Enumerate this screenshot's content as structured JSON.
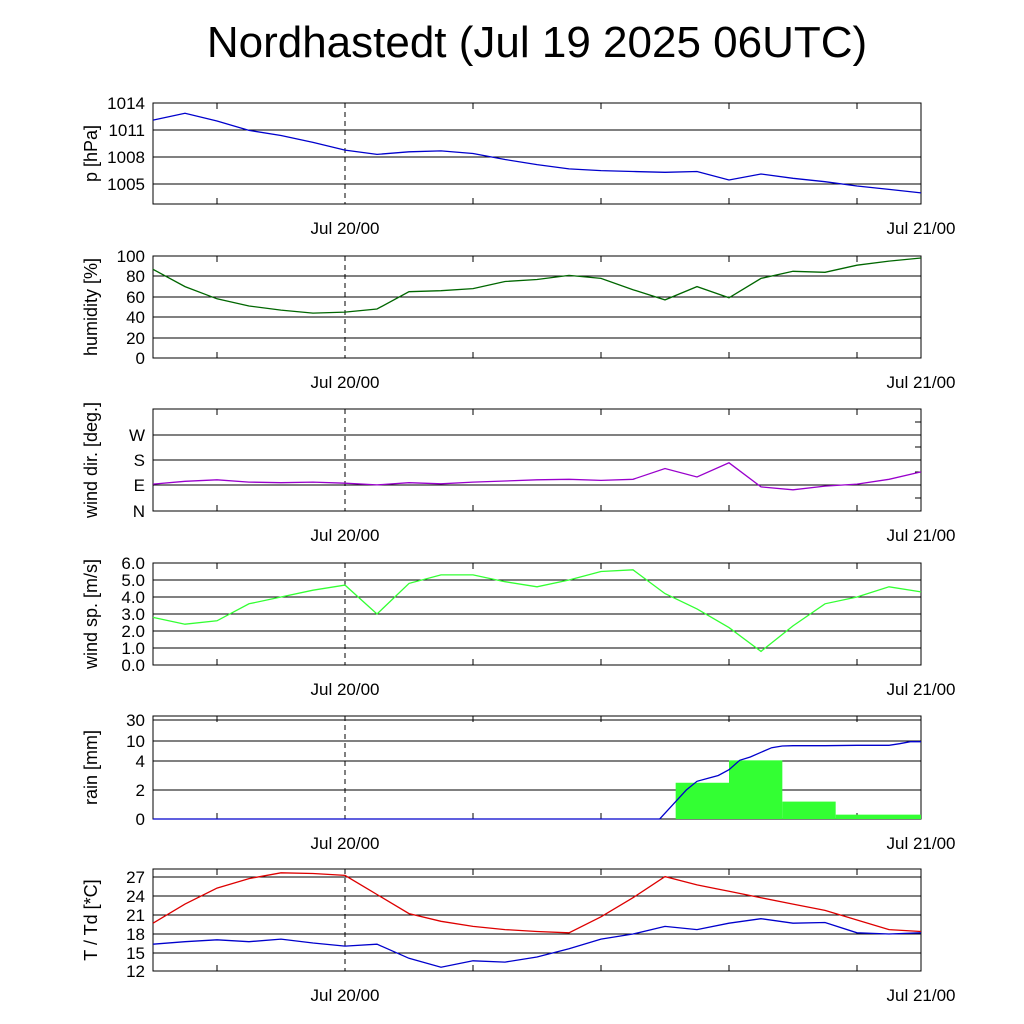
{
  "page": {
    "title": "Nordhastedt (Jul 19 2025 06UTC)"
  },
  "chart_data": [
    {
      "type": "line",
      "ylabel": "p [hPa]",
      "yticks": [
        "1014",
        "1011",
        "1008",
        "1005"
      ],
      "ytick_values": [
        1014,
        1011,
        1008,
        1005
      ],
      "ylim": [
        1002.2,
        1014
      ],
      "xticks": [
        "Jul 20/00",
        "Jul 21/00"
      ],
      "x_hours_since_start": [
        0,
        3,
        6,
        9,
        12,
        15,
        18,
        21,
        24,
        27,
        30,
        33,
        36,
        39,
        42,
        45,
        48,
        51,
        54,
        57,
        60,
        63,
        66,
        69,
        72
      ],
      "series": [
        {
          "values": [
            1012.0,
            1012.8,
            1011.9,
            1010.8,
            1010.2,
            1009.4,
            1008.5,
            1008.0,
            1008.3,
            1008.4,
            1008.1,
            1007.4,
            1006.8,
            1006.3,
            1006.1,
            1006.0,
            1005.9,
            1006.0,
            1005.0,
            1005.7,
            1005.2,
            1004.8,
            1004.3,
            1003.9,
            1003.5
          ],
          "color": "#0000cc"
        }
      ]
    },
    {
      "type": "line",
      "ylabel": "humidity [%]",
      "yticks": [
        "100",
        "80",
        "60",
        "40",
        "20",
        "0"
      ],
      "ytick_values": [
        100,
        80,
        60,
        40,
        20,
        0
      ],
      "ylim": [
        0,
        100
      ],
      "xticks": [
        "Jul 20/00",
        "Jul 21/00"
      ],
      "x_hours_since_start": [
        0,
        3,
        6,
        9,
        12,
        15,
        18,
        21,
        24,
        27,
        30,
        33,
        36,
        39,
        42,
        45,
        48,
        51,
        54,
        57,
        60,
        63,
        66,
        69,
        72
      ],
      "series": [
        {
          "values": [
            87,
            70,
            58,
            51,
            47,
            44,
            45,
            48,
            65,
            66,
            68,
            75,
            77,
            81,
            78,
            67,
            57,
            70,
            59,
            78,
            85,
            84,
            91,
            95,
            98
          ],
          "color": "#006600"
        }
      ]
    },
    {
      "type": "line",
      "ylabel": "wind dir. [deg.]",
      "yticks": [
        "W",
        "S",
        "E",
        "N"
      ],
      "ytick_values": [
        270,
        180,
        90,
        0
      ],
      "ylim": [
        0,
        360
      ],
      "xticks": [
        "Jul 20/00",
        "Jul 21/00"
      ],
      "x_hours_since_start": [
        0,
        3,
        6,
        9,
        12,
        15,
        18,
        21,
        24,
        27,
        30,
        33,
        36,
        39,
        42,
        45,
        48,
        51,
        54,
        57,
        60,
        63,
        66,
        69,
        72
      ],
      "series": [
        {
          "values": [
            95,
            105,
            110,
            102,
            100,
            102,
            98,
            92,
            100,
            96,
            102,
            106,
            110,
            112,
            108,
            112,
            150,
            120,
            170,
            85,
            75,
            88,
            95,
            112,
            138
          ],
          "color": "#9900cc"
        }
      ]
    },
    {
      "type": "line",
      "ylabel": "wind sp. [m/s]",
      "yticks": [
        "6.0",
        "5.0",
        "4.0",
        "3.0",
        "2.0",
        "1.0",
        "0.0"
      ],
      "ytick_values": [
        6,
        5,
        4,
        3,
        2,
        1,
        0
      ],
      "ylim": [
        0,
        6
      ],
      "xticks": [
        "Jul 20/00",
        "Jul 21/00"
      ],
      "x_hours_since_start": [
        0,
        3,
        6,
        9,
        12,
        15,
        18,
        21,
        24,
        27,
        30,
        33,
        36,
        39,
        42,
        45,
        48,
        51,
        54,
        57,
        60,
        63,
        66,
        69,
        72
      ],
      "series": [
        {
          "values": [
            2.8,
            2.4,
            2.6,
            3.6,
            4.0,
            4.4,
            4.7,
            3.0,
            4.8,
            5.3,
            5.3,
            4.9,
            4.6,
            5.0,
            5.5,
            5.6,
            4.2,
            3.3,
            2.2,
            0.8,
            2.3,
            3.6,
            4.0,
            4.6,
            4.3
          ],
          "color": "#33ff33"
        }
      ]
    },
    {
      "type": "bar",
      "ylabel": "rain [mm]",
      "yticks": [
        "30",
        "10",
        "4",
        "2",
        "0"
      ],
      "ytick_values": [
        30,
        10,
        4,
        2,
        0
      ],
      "ylim": [
        0,
        30
      ],
      "xticks": [
        "Jul 20/00",
        "Jul 21/00"
      ],
      "bars": [
        {
          "x_start_hour": 49,
          "x_end_hour": 54,
          "value": 2.5
        },
        {
          "x_start_hour": 54,
          "x_end_hour": 59,
          "value": 4.2
        },
        {
          "x_start_hour": 59,
          "x_end_hour": 64,
          "value": 1.2
        },
        {
          "x_start_hour": 64,
          "x_end_hour": 72,
          "value": 0.3
        }
      ],
      "bar_color": "#33ff33",
      "x_hours_since_start": [
        0,
        47.5,
        49,
        50,
        51,
        52,
        53,
        54,
        55,
        56,
        57,
        58,
        59,
        60,
        63,
        66,
        69,
        70,
        71,
        72
      ],
      "series": [
        {
          "values": [
            0,
            0,
            1.2,
            2.0,
            2.6,
            2.8,
            3.0,
            3.4,
            4.2,
            5.2,
            6.6,
            8.0,
            8.5,
            8.6,
            8.6,
            8.7,
            8.7,
            9.2,
            9.8,
            9.8
          ],
          "color": "#0000cc"
        }
      ]
    },
    {
      "type": "line",
      "ylabel": "T / Td [*C]",
      "yticks": [
        "27",
        "24",
        "21",
        "18",
        "15",
        "12"
      ],
      "ytick_values": [
        27,
        24,
        21,
        18,
        15,
        12
      ],
      "ylim": [
        12,
        28
      ],
      "xticks": [
        "Jul 20/00",
        "Jul 21/00"
      ],
      "x_hours_since_start": [
        0,
        3,
        6,
        9,
        12,
        15,
        18,
        21,
        24,
        27,
        30,
        33,
        36,
        39,
        42,
        45,
        48,
        51,
        54,
        57,
        60,
        63,
        66,
        69,
        72
      ],
      "series": [
        {
          "values": [
            19.5,
            22.5,
            25.0,
            26.5,
            27.4,
            27.3,
            27.0,
            24.0,
            21.0,
            19.8,
            19.0,
            18.5,
            18.2,
            18.0,
            20.5,
            23.5,
            26.8,
            25.5,
            24.5,
            23.5,
            22.5,
            21.5,
            20.0,
            18.5,
            18.2
          ],
          "color": "#dd0000"
        },
        {
          "values": [
            16.2,
            16.6,
            16.9,
            16.6,
            17.0,
            16.4,
            15.9,
            16.2,
            14.0,
            12.6,
            13.6,
            13.4,
            14.2,
            15.5,
            17.0,
            17.8,
            19.0,
            18.5,
            19.5,
            20.2,
            19.5,
            19.6,
            18.0,
            17.8,
            18.0
          ],
          "color": "#0000cc"
        }
      ]
    }
  ]
}
